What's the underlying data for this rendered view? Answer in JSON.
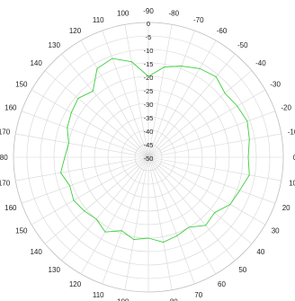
{
  "chart_data": {
    "type": "line",
    "projection": "polar",
    "title": "",
    "angle_labels": [
      "-90",
      "-80",
      "-70",
      "-60",
      "-50",
      "-40",
      "-30",
      "-20",
      "-10",
      "0",
      "10",
      "20",
      "30",
      "40",
      "50",
      "60",
      "70",
      "80",
      "90",
      "100",
      "110",
      "120",
      "130",
      "140",
      "150",
      "160",
      "170",
      "180",
      "170",
      "160",
      "150",
      "140",
      "130",
      "120",
      "110",
      "100"
    ],
    "radial_ticks": [
      0,
      -5,
      -10,
      -15,
      -20,
      -25,
      -30,
      -35,
      -40,
      -45,
      -50
    ],
    "r_range": [
      -50,
      0
    ],
    "angle_zero_position": "top",
    "angle_direction": "clockwise",
    "grid": true,
    "colors": {
      "trace": "#3ccf3c",
      "grid": "#d6d6d6",
      "label": "#222222"
    },
    "series": [
      {
        "theta": [
          0,
          10,
          20,
          30,
          40,
          50,
          60,
          70,
          80,
          90,
          100,
          110,
          120,
          130,
          140,
          150,
          160,
          170,
          180,
          190,
          200,
          210,
          220,
          230,
          240,
          250,
          260,
          270,
          280,
          290,
          300,
          310,
          320,
          330,
          340,
          350
        ],
        "r": [
          -20,
          -16,
          -14,
          -12,
          -11,
          -13,
          -12,
          -11,
          -12,
          -13,
          -12,
          -14,
          -15,
          -18,
          -17,
          -20,
          -19,
          -18,
          -20,
          -19,
          -21,
          -18,
          -20,
          -19,
          -18,
          -19,
          -17,
          -19,
          -20,
          -18,
          -17,
          -16,
          -18,
          -12,
          -11,
          -14
        ]
      }
    ]
  }
}
